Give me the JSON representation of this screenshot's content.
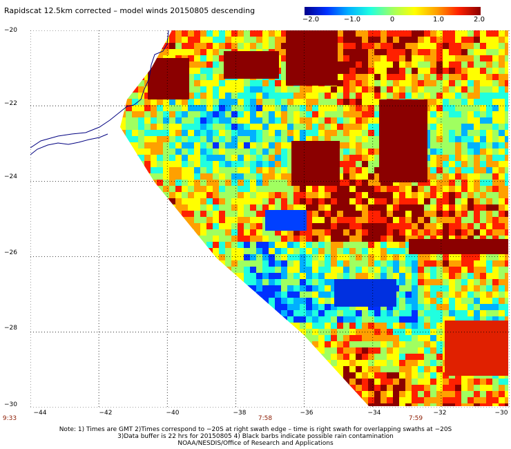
{
  "title": "Rapidscat 12.5km corrected – model winds 20150805 descending",
  "colorbar": {
    "ticks": [
      "−2.0",
      "−1.0",
      "0",
      "1.0",
      "2.0"
    ],
    "colors": [
      "#00008b",
      "#0030ff",
      "#00b0ff",
      "#20ffe0",
      "#a0ff60",
      "#ffff00",
      "#ffa000",
      "#ff2000",
      "#8b0000"
    ]
  },
  "axes": {
    "y_labels": [
      "−20",
      "−22",
      "−24",
      "−26",
      "−28",
      "−30"
    ],
    "x_labels": [
      "−44",
      "−42",
      "−40",
      "−38",
      "−36",
      "−34",
      "−32",
      "−30"
    ],
    "lon_range": [
      -44,
      -30
    ],
    "lat_range": [
      -30,
      -20
    ],
    "grid": "dotted"
  },
  "time_labels": [
    "9:33",
    "7:58",
    "7:59"
  ],
  "notes": [
    "Note: 1) Times are GMT 2)Times correspond to −20S at right swath edge – time is right swath for overlapping swaths at −20S",
    "3)Data buffer is 22 hrs for 20150805 4) Black barbs indicate possible rain contamination",
    "NOAA/NESDIS/Office of Research and Applications"
  ]
}
